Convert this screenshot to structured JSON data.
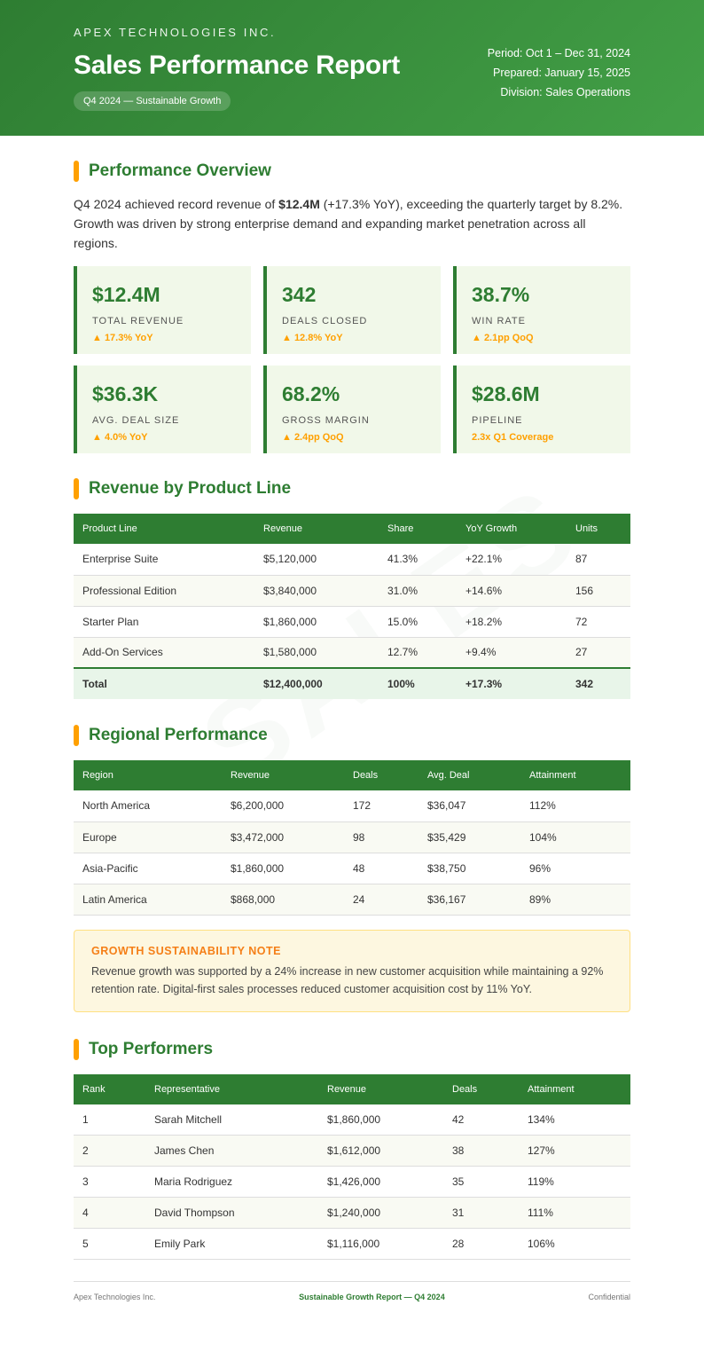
{
  "header": {
    "company": "APEX TECHNOLOGIES INC.",
    "title": "Sales Performance Report",
    "badge": "Q4 2024 — Sustainable Growth",
    "period": "Period: Oct 1 – Dec 31, 2024",
    "prepared": "Prepared: January 15, 2025",
    "division": "Division: Sales Operations"
  },
  "watermark": "SALES",
  "overview": {
    "title": "Performance Overview",
    "intro_pre": "Q4 2024 achieved record revenue of ",
    "intro_bold": "$12.4M",
    "intro_post": " (+17.3% YoY), exceeding the quarterly target by 8.2%. Growth was driven by strong enterprise demand and expanding market penetration across all regions.",
    "cards": [
      {
        "value": "$12.4M",
        "label": "TOTAL REVENUE",
        "change": "▲ 17.3% YoY"
      },
      {
        "value": "342",
        "label": "DEALS CLOSED",
        "change": "▲ 12.8% YoY"
      },
      {
        "value": "38.7%",
        "label": "WIN RATE",
        "change": "▲ 2.1pp QoQ"
      },
      {
        "value": "$36.3K",
        "label": "AVG. DEAL SIZE",
        "change": "▲ 4.0% YoY"
      },
      {
        "value": "68.2%",
        "label": "GROSS MARGIN",
        "change": "▲ 2.4pp QoQ"
      },
      {
        "value": "$28.6M",
        "label": "PIPELINE",
        "change": "2.3x Q1 Coverage"
      }
    ]
  },
  "product": {
    "title": "Revenue by Product Line",
    "headers": [
      "Product Line",
      "Revenue",
      "Share",
      "YoY Growth",
      "Units"
    ],
    "rows": [
      [
        "Enterprise Suite",
        "$5,120,000",
        "41.3%",
        "+22.1%",
        "87"
      ],
      [
        "Professional Edition",
        "$3,840,000",
        "31.0%",
        "+14.6%",
        "156"
      ],
      [
        "Starter Plan",
        "$1,860,000",
        "15.0%",
        "+18.2%",
        "72"
      ],
      [
        "Add-On Services",
        "$1,580,000",
        "12.7%",
        "+9.4%",
        "27"
      ]
    ],
    "total": [
      "Total",
      "$12,400,000",
      "100%",
      "+17.3%",
      "342"
    ]
  },
  "regional": {
    "title": "Regional Performance",
    "headers": [
      "Region",
      "Revenue",
      "Deals",
      "Avg. Deal",
      "Attainment"
    ],
    "rows": [
      [
        "North America",
        "$6,200,000",
        "172",
        "$36,047",
        "112%"
      ],
      [
        "Europe",
        "$3,472,000",
        "98",
        "$35,429",
        "104%"
      ],
      [
        "Asia-Pacific",
        "$1,860,000",
        "48",
        "$38,750",
        "96%"
      ],
      [
        "Latin America",
        "$868,000",
        "24",
        "$36,167",
        "89%"
      ]
    ]
  },
  "note": {
    "title": "GROWTH SUSTAINABILITY NOTE",
    "text": "Revenue growth was supported by a 24% increase in new customer acquisition while maintaining a 92% retention rate. Digital-first sales processes reduced customer acquisition cost by 11% YoY."
  },
  "performers": {
    "title": "Top Performers",
    "headers": [
      "Rank",
      "Representative",
      "Revenue",
      "Deals",
      "Attainment"
    ],
    "rows": [
      [
        "1",
        "Sarah Mitchell",
        "$1,860,000",
        "42",
        "134%"
      ],
      [
        "2",
        "James Chen",
        "$1,612,000",
        "38",
        "127%"
      ],
      [
        "3",
        "Maria Rodriguez",
        "$1,426,000",
        "35",
        "119%"
      ],
      [
        "4",
        "David Thompson",
        "$1,240,000",
        "31",
        "111%"
      ],
      [
        "5",
        "Emily Park",
        "$1,116,000",
        "28",
        "106%"
      ]
    ]
  },
  "footer": {
    "left": "Apex Technologies Inc.",
    "center": "Sustainable Growth Report — Q4 2024",
    "right": "Confidential"
  },
  "colors": {
    "primary": "#2e7d32",
    "accent": "#ffa000",
    "note_title": "#f57f17"
  }
}
